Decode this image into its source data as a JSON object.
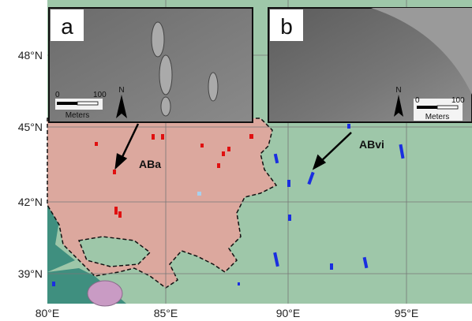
{
  "axes": {
    "latitude": [
      "48°N",
      "45°N",
      "42°N",
      "39°N"
    ],
    "longitude": [
      "80°E",
      "85°E",
      "90°E",
      "95°E"
    ]
  },
  "insets": [
    {
      "label": "a",
      "scale": {
        "start": "0",
        "end": "100",
        "unit": "Meters"
      },
      "north": "N"
    },
    {
      "label": "b",
      "scale": {
        "start": "0",
        "end": "100",
        "unit": "Meters"
      },
      "north": "N"
    }
  ],
  "units": [
    {
      "label": "ABa"
    },
    {
      "label": "ABvi"
    }
  ]
}
